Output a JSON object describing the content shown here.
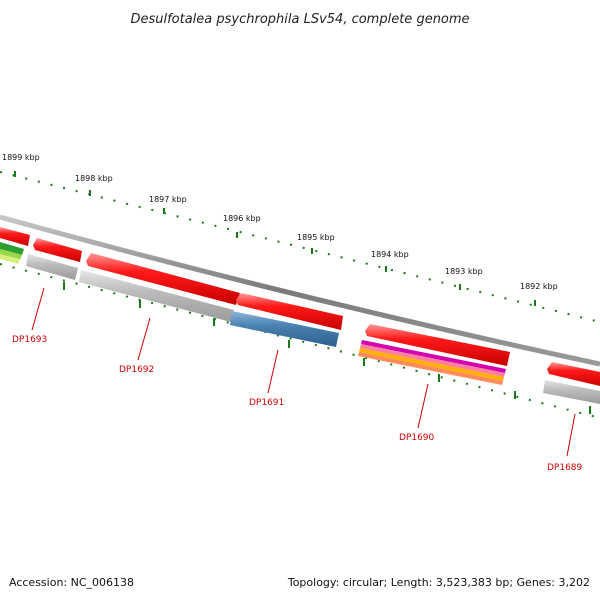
{
  "title": "Desulfotalea psychrophila LSv54, complete genome",
  "scale_labels": [
    "1899 kbp",
    "1898 kbp",
    "1897 kbp",
    "1896 kbp",
    "1895 kbp",
    "1894 kbp",
    "1893 kbp",
    "1892 kbp"
  ],
  "genes": [
    "DP1693",
    "DP1692",
    "DP1691",
    "DP1690",
    "DP1689"
  ],
  "footer": {
    "accession": "Accession: NC_006138",
    "summary": "Topology: circular; Length: 3,523,383 bp; Genes: 3,202"
  },
  "colors": {
    "backbone": "#8a8a8a",
    "tick": "#1a7a1a",
    "cds": "#ff0000",
    "label": "#cc0000",
    "gray_feature": "#b4b4b4",
    "blue_feature": "#4a82b4"
  }
}
